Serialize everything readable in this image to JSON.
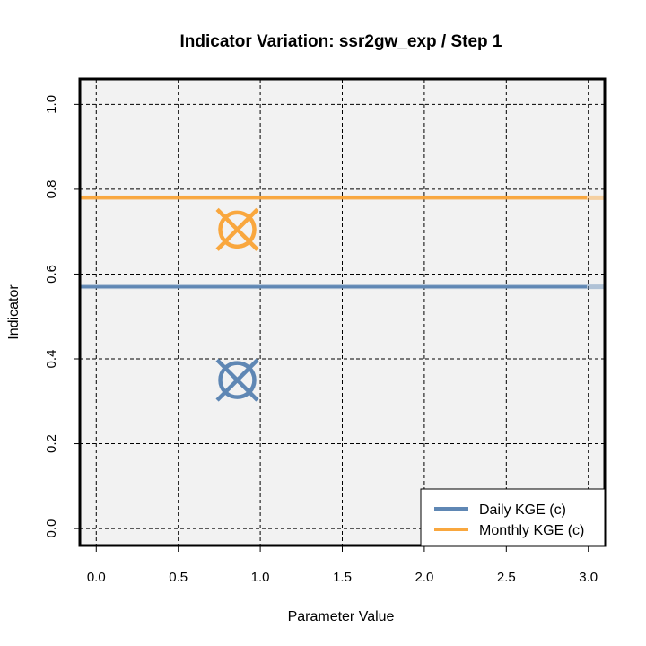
{
  "chart_data": {
    "type": "line",
    "title": "Indicator Variation: ssr2gw_exp / Step 1",
    "xlabel": "Parameter Value",
    "ylabel": "Indicator",
    "xlim": [
      -0.1,
      3.1
    ],
    "ylim": [
      -0.04,
      1.06
    ],
    "x_ticks": [
      "0.0",
      "0.5",
      "1.0",
      "1.5",
      "2.0",
      "2.5",
      "3.0"
    ],
    "y_ticks": [
      "0.0",
      "0.2",
      "0.4",
      "0.6",
      "0.8",
      "1.0"
    ],
    "grid": true,
    "legend_position": "bottom-right",
    "series": [
      {
        "name": "Daily KGE (c)",
        "color": "#5f87b4",
        "line_y": 0.57,
        "marker": {
          "x": 0.86,
          "y": 0.35,
          "symbol": "circle-x"
        }
      },
      {
        "name": "Monthly KGE (c)",
        "color": "#f9a73e",
        "line_y": 0.78,
        "marker": {
          "x": 0.86,
          "y": 0.705,
          "symbol": "circle-x"
        }
      }
    ]
  }
}
